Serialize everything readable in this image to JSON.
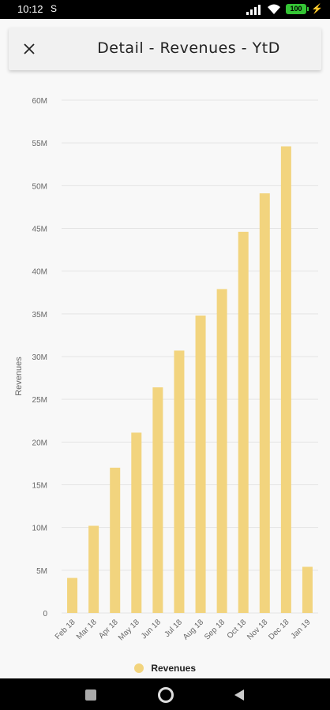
{
  "status_bar": {
    "time": "10:12",
    "s_icon": "S",
    "battery_level": "100",
    "icons": [
      "signal-icon",
      "wifi-icon",
      "battery-icon",
      "charging-icon"
    ]
  },
  "header": {
    "title": "Detail - Revenues - YtD",
    "close_icon": "close-icon"
  },
  "colors": {
    "bar": "#f2d47e",
    "grid": "#e4e4e4",
    "background": "#f8f8f8",
    "header": "#f1f1f1"
  },
  "chart_data": {
    "type": "bar",
    "categories": [
      "Feb 18",
      "Mar 18",
      "Apr 18",
      "May 18",
      "Jun 18",
      "Jul 18",
      "Aug 18",
      "Sep 18",
      "Oct 18",
      "Nov 18",
      "Dec 18",
      "Jan 19"
    ],
    "series": [
      {
        "name": "Revenues",
        "values": [
          4.1,
          10.2,
          17.0,
          21.1,
          26.4,
          30.7,
          34.8,
          37.9,
          44.6,
          49.1,
          54.6,
          5.4
        ]
      }
    ],
    "unit": "M",
    "ylabel": "Revenues",
    "xlabel": "",
    "ylim": [
      0,
      60
    ],
    "yticks": [
      "0",
      "5M",
      "10M",
      "15M",
      "20M",
      "25M",
      "30M",
      "35M",
      "40M",
      "45M",
      "50M",
      "55M",
      "60M"
    ],
    "grid": true,
    "legend": "bottom-center"
  },
  "nav_bar": {
    "icons": [
      "recents-square-icon",
      "home-circle-icon",
      "back-triangle-icon"
    ]
  }
}
